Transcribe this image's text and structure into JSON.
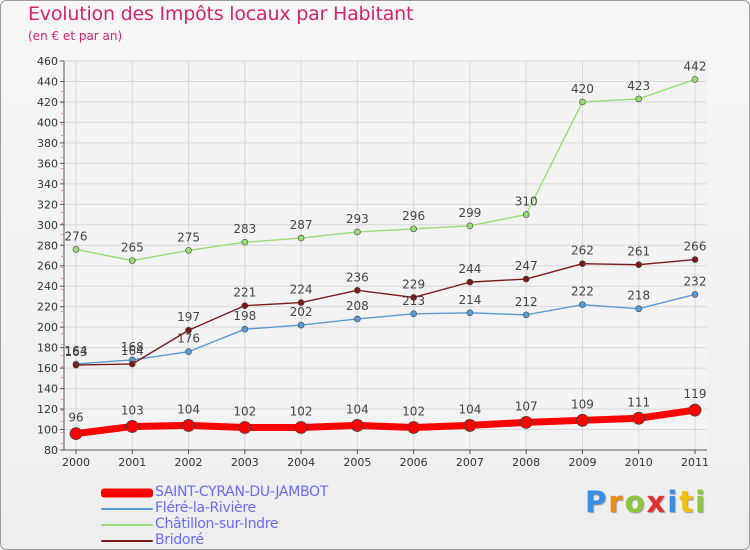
{
  "header": {
    "title": "Evolution des Impôts locaux par Habitant",
    "subtitle": "(en € et par an)"
  },
  "brand": {
    "name": "Proxiti",
    "letters": [
      {
        "char": "P",
        "color": "#3a8ee0"
      },
      {
        "char": "r",
        "color": "#f08a10"
      },
      {
        "char": "o",
        "color": "#8cc63e"
      },
      {
        "char": "x",
        "color": "#e03030"
      },
      {
        "char": "i",
        "color": "#3a8ee0"
      },
      {
        "char": "t",
        "color": "#f0c010"
      },
      {
        "char": "i",
        "color": "#8cc63e"
      }
    ]
  },
  "chart_data": {
    "type": "line",
    "title": "Evolution des Impôts locaux par Habitant",
    "subtitle": "(en € et par an)",
    "xlabel": "",
    "ylabel": "",
    "x": [
      "2000",
      "2001",
      "2002",
      "2003",
      "2004",
      "2005",
      "2006",
      "2007",
      "2008",
      "2009",
      "2010",
      "2011"
    ],
    "ylim": [
      80,
      460
    ],
    "yticks": [
      80,
      100,
      120,
      140,
      160,
      180,
      200,
      220,
      240,
      260,
      280,
      300,
      320,
      340,
      360,
      380,
      400,
      420,
      440,
      460
    ],
    "grid": true,
    "legend_position": "bottom-left",
    "series": [
      {
        "name": "SAINT-CYRAN-DU-JAMBOT",
        "color": "#ff0000",
        "emphasis": true,
        "values": [
          96,
          103,
          104,
          102,
          102,
          104,
          102,
          104,
          107,
          109,
          111,
          119
        ],
        "labels": [
          "96",
          "103",
          "104",
          "102",
          "102",
          "104",
          "102",
          "104",
          "107",
          "109",
          "111",
          "119"
        ]
      },
      {
        "name": "Fléré-la-Rivière",
        "color": "#5b9bd5",
        "emphasis": false,
        "values": [
          164,
          168,
          176,
          198,
          202,
          208,
          213,
          214,
          212,
          222,
          218,
          232
        ],
        "labels": [
          "164",
          "168",
          "176",
          "198",
          "202",
          "208",
          "213",
          "214",
          "212",
          "222",
          "218",
          "232"
        ]
      },
      {
        "name": "Châtillon-sur-Indre",
        "color": "#99dd77",
        "emphasis": false,
        "values": [
          276,
          265,
          275,
          283,
          287,
          293,
          296,
          299,
          310,
          420,
          423,
          442
        ],
        "labels": [
          "276",
          "265",
          "275",
          "283",
          "287",
          "293",
          "296",
          "299",
          "310",
          "420",
          "423",
          "442"
        ]
      },
      {
        "name": "Bridoré",
        "color": "#7a1a1a",
        "emphasis": false,
        "values": [
          163,
          164,
          197,
          221,
          224,
          236,
          229,
          244,
          247,
          262,
          261,
          266
        ],
        "labels": [
          "163",
          "164",
          "197",
          "221",
          "224",
          "236",
          "229",
          "244",
          "247",
          "262",
          "261",
          "266"
        ]
      }
    ]
  }
}
